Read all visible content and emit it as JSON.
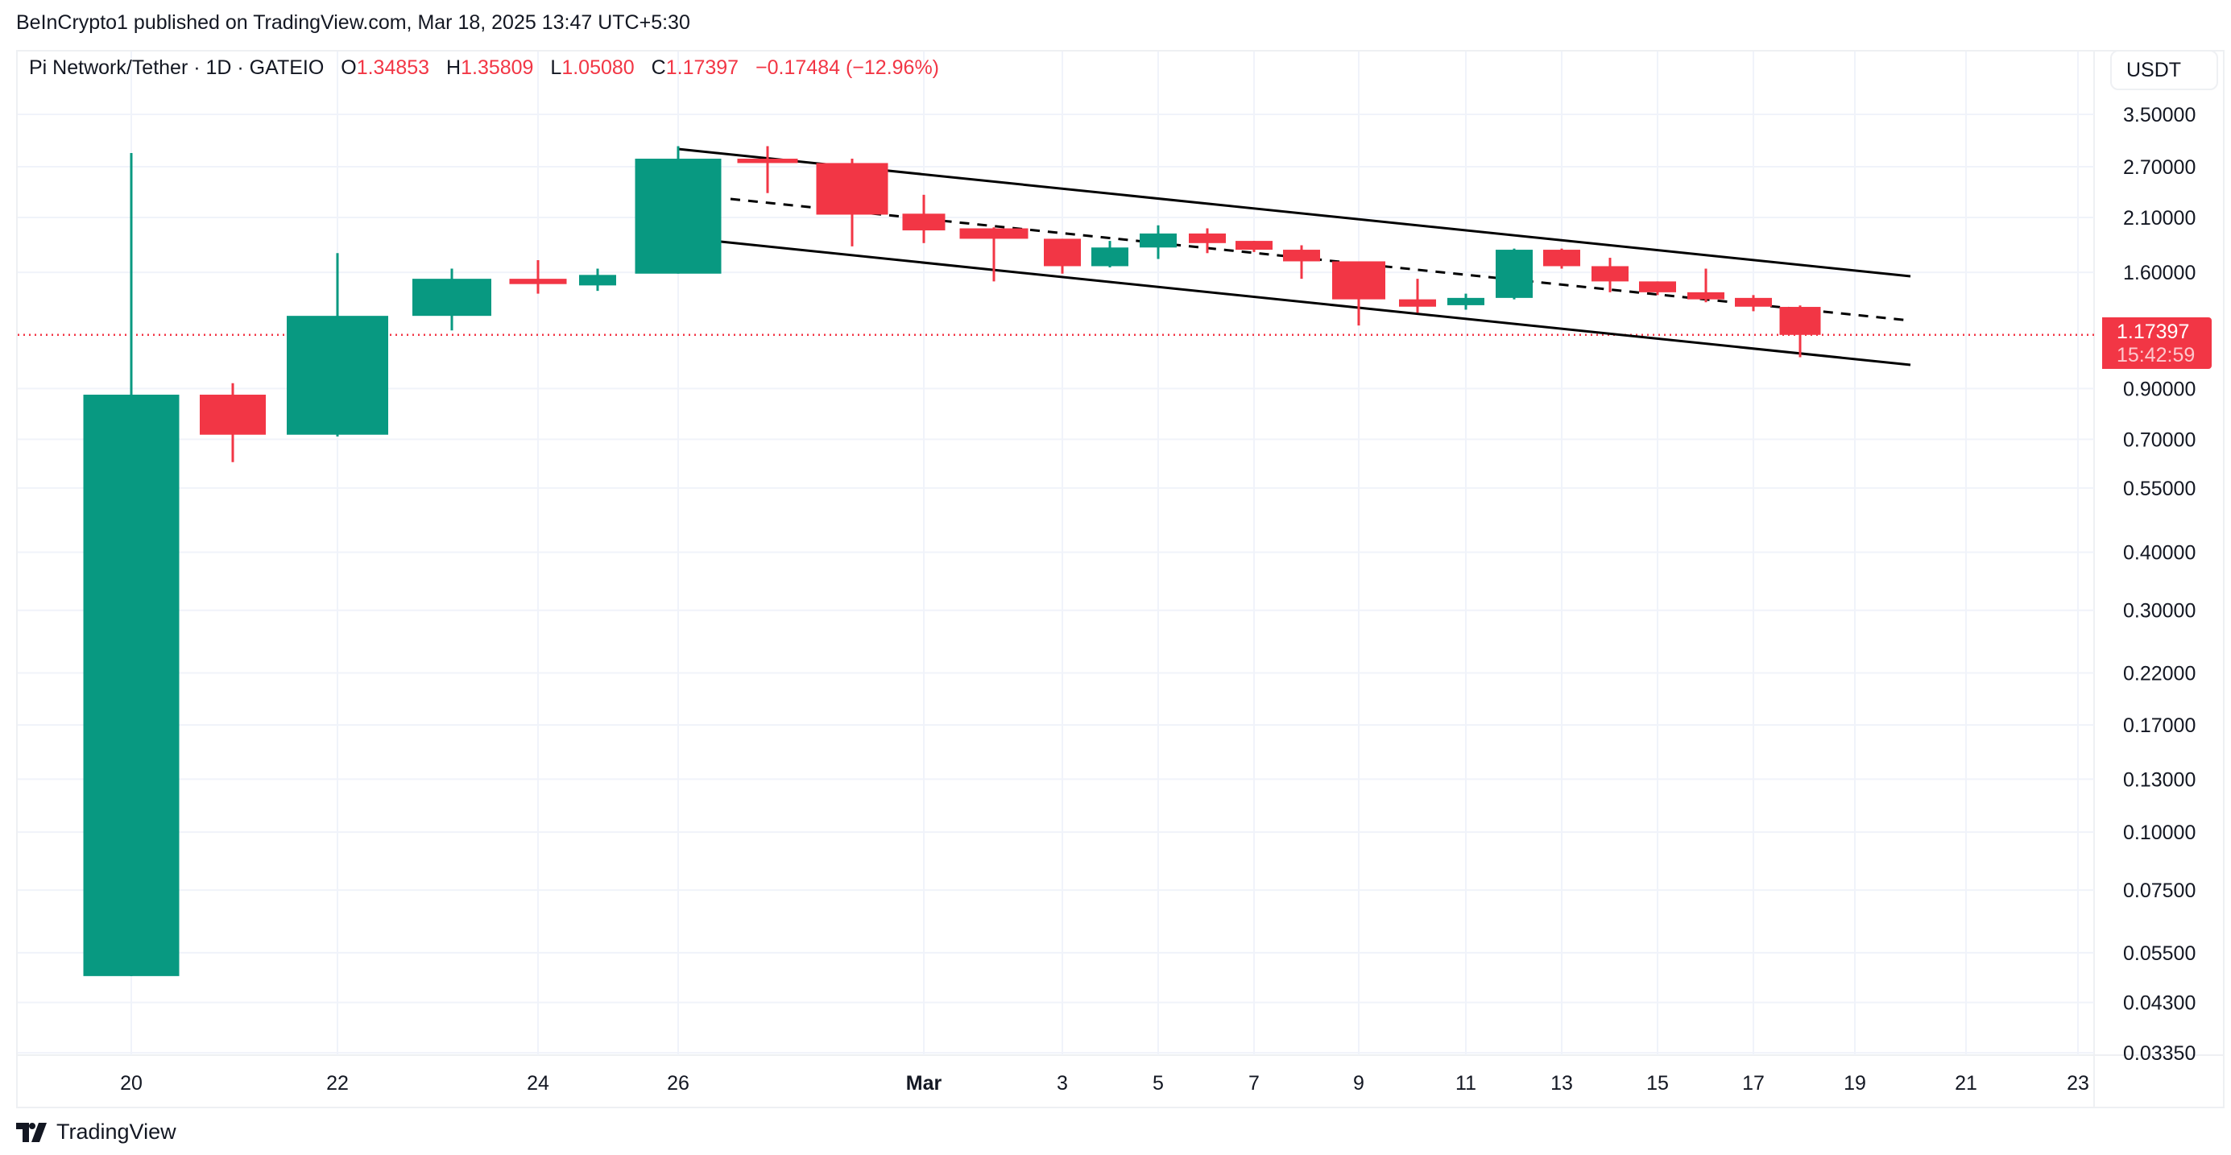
{
  "header": {
    "publish_line": "BeInCrypto1 published on TradingView.com, Mar 18, 2025 13:47 UTC+5:30"
  },
  "legend": {
    "symbol": "Pi Network/Tether · 1D · GATEIO",
    "o_label": "O",
    "o": "1.34853",
    "h_label": "H",
    "h": "1.35809",
    "l_label": "L",
    "l": "1.05080",
    "c_label": "C",
    "c": "1.17397",
    "change": "−0.17484 (−12.96%)"
  },
  "price_axis": {
    "currency": "USDT",
    "last_price": "1.17397",
    "countdown": "15:42:59"
  },
  "footer": {
    "brand": "TradingView"
  },
  "colors": {
    "up": "#089981",
    "down": "#f23645",
    "grid": "#f0f3fa",
    "trendline": "#000000"
  },
  "chart_data": {
    "type": "candlestick",
    "title": "Pi Network/Tether · 1D · GATEIO",
    "yscale": "log",
    "ylim": [
      0.0335,
      3.5
    ],
    "y_ticks": [
      "3.50000",
      "2.70000",
      "2.10000",
      "1.60000",
      "0.90000",
      "0.70000",
      "0.55000",
      "0.40000",
      "0.30000",
      "0.22000",
      "0.17000",
      "0.13000",
      "0.10000",
      "0.07500",
      "0.05500",
      "0.04300",
      "0.03350"
    ],
    "x_ticks": [
      "20",
      "22",
      "24",
      "26",
      "Mar",
      "3",
      "5",
      "7",
      "9",
      "11",
      "13",
      "15",
      "17",
      "19",
      "21",
      "23"
    ],
    "candles": [
      {
        "date": "Feb 20",
        "o": 0.049,
        "h": 2.89,
        "l": 0.049,
        "c": 0.873
      },
      {
        "date": "Feb 21",
        "o": 0.873,
        "h": 0.924,
        "l": 0.625,
        "c": 0.716
      },
      {
        "date": "Feb 22",
        "o": 0.716,
        "h": 1.76,
        "l": 0.71,
        "c": 1.29
      },
      {
        "date": "Feb 23",
        "o": 1.29,
        "h": 1.63,
        "l": 1.2,
        "c": 1.55
      },
      {
        "date": "Feb 24",
        "o": 1.55,
        "h": 1.7,
        "l": 1.44,
        "c": 1.51
      },
      {
        "date": "Feb 25",
        "o": 1.5,
        "h": 1.63,
        "l": 1.46,
        "c": 1.58
      },
      {
        "date": "Feb 26",
        "o": 1.59,
        "h": 2.99,
        "l": 1.59,
        "c": 2.81
      },
      {
        "date": "Feb 27",
        "o": 2.81,
        "h": 2.99,
        "l": 2.37,
        "c": 2.75
      },
      {
        "date": "Feb 28",
        "o": 2.75,
        "h": 2.81,
        "l": 1.82,
        "c": 2.13
      },
      {
        "date": "Mar 1",
        "o": 2.14,
        "h": 2.35,
        "l": 1.85,
        "c": 1.97
      },
      {
        "date": "Mar 2",
        "o": 1.99,
        "h": 2.0,
        "l": 1.53,
        "c": 1.89
      },
      {
        "date": "Mar 3",
        "o": 1.89,
        "h": 1.89,
        "l": 1.59,
        "c": 1.65
      },
      {
        "date": "Mar 4",
        "o": 1.65,
        "h": 1.87,
        "l": 1.64,
        "c": 1.81
      },
      {
        "date": "Mar 5",
        "o": 1.81,
        "h": 2.02,
        "l": 1.71,
        "c": 1.94
      },
      {
        "date": "Mar 6",
        "o": 1.94,
        "h": 1.99,
        "l": 1.76,
        "c": 1.85
      },
      {
        "date": "Mar 7",
        "o": 1.87,
        "h": 1.87,
        "l": 1.77,
        "c": 1.79
      },
      {
        "date": "Mar 8",
        "o": 1.79,
        "h": 1.83,
        "l": 1.55,
        "c": 1.69
      },
      {
        "date": "Mar 9",
        "o": 1.69,
        "h": 1.69,
        "l": 1.23,
        "c": 1.4
      },
      {
        "date": "Mar 10",
        "o": 1.4,
        "h": 1.55,
        "l": 1.31,
        "c": 1.35
      },
      {
        "date": "Mar 11",
        "o": 1.36,
        "h": 1.44,
        "l": 1.33,
        "c": 1.41
      },
      {
        "date": "Mar 12",
        "o": 1.41,
        "h": 1.8,
        "l": 1.4,
        "c": 1.79
      },
      {
        "date": "Mar 13",
        "o": 1.79,
        "h": 1.8,
        "l": 1.63,
        "c": 1.65
      },
      {
        "date": "Mar 14",
        "o": 1.65,
        "h": 1.72,
        "l": 1.45,
        "c": 1.53
      },
      {
        "date": "Mar 15",
        "o": 1.53,
        "h": 1.53,
        "l": 1.43,
        "c": 1.45
      },
      {
        "date": "Mar 16",
        "o": 1.45,
        "h": 1.63,
        "l": 1.38,
        "c": 1.4
      },
      {
        "date": "Mar 17",
        "o": 1.41,
        "h": 1.43,
        "l": 1.32,
        "c": 1.35
      },
      {
        "date": "Mar 18",
        "o": 1.34853,
        "h": 1.35809,
        "l": 1.0508,
        "c": 1.17397
      }
    ],
    "annotations": [
      "descending channel (upper, lower, dashed midline)"
    ],
    "last_price_line": 1.17397,
    "grid": true
  }
}
